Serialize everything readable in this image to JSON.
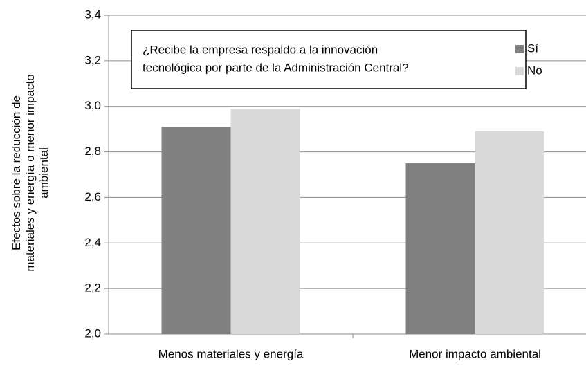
{
  "chart_data": {
    "type": "bar",
    "y_label": [
      "Efectos sobre la reducción de",
      "materiales y energía o menor impacto",
      "ambiental"
    ],
    "legend_title": [
      "¿Recibe la empresa respaldo a la innovación",
      "tecnológica por parte de la Administración Central?"
    ],
    "categories": [
      "Menos materiales  y energía",
      "Menor impacto ambiental"
    ],
    "series": [
      {
        "name": "Sí",
        "color": "#808080",
        "values": [
          2.91,
          2.75
        ]
      },
      {
        "name": "No",
        "color": "#d9d9d9",
        "values": [
          2.99,
          2.89
        ]
      }
    ],
    "ylim": [
      2.0,
      3.4
    ],
    "yticks": [
      {
        "value": 2.0,
        "label": "2,0"
      },
      {
        "value": 2.2,
        "label": "2,2"
      },
      {
        "value": 2.4,
        "label": "2,4"
      },
      {
        "value": 2.6,
        "label": "2,6"
      },
      {
        "value": 2.8,
        "label": "2,8"
      },
      {
        "value": 3.0,
        "label": "3,0"
      },
      {
        "value": 3.2,
        "label": "3,2"
      },
      {
        "value": 3.4,
        "label": "3,4"
      }
    ],
    "grid": true
  }
}
